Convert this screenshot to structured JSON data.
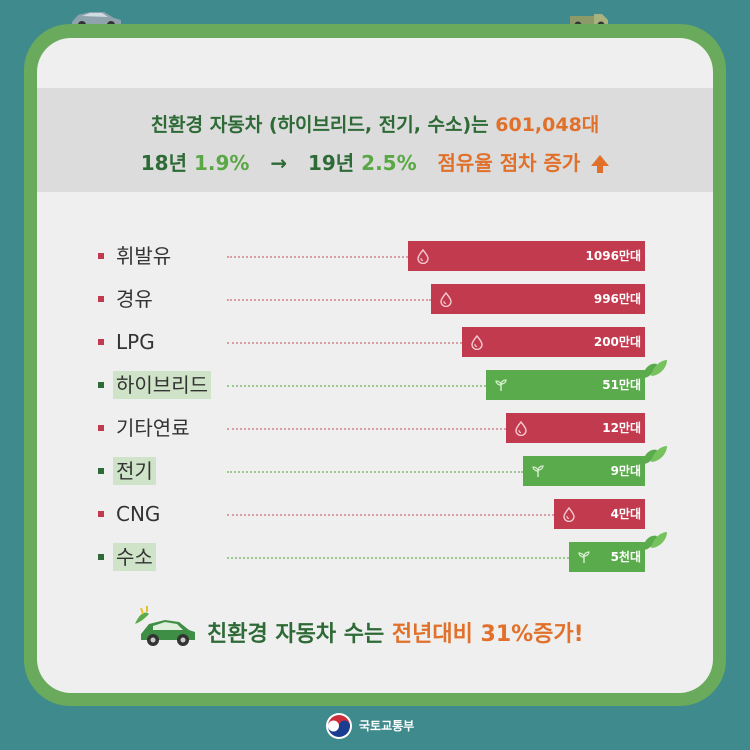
{
  "header": {
    "line1_prefix": "친환경 자동차 (하이브리드, 전기, 수소)는 ",
    "line1_value": "601,048대",
    "line2_y18": "18년 ",
    "line2_y18_pct": "1.9%",
    "line2_arrow": "→",
    "line2_y19": "19년 ",
    "line2_y19_pct": "2.5%",
    "line2_trend": "점유율 점차 증가"
  },
  "rows": [
    {
      "label": "휘발유",
      "value_text": "1096만대",
      "kind": "fuel",
      "highlight": false
    },
    {
      "label": "경유",
      "value_text": "996만대",
      "kind": "fuel",
      "highlight": false
    },
    {
      "label": "LPG",
      "value_text": "200만대",
      "kind": "fuel",
      "highlight": false
    },
    {
      "label": "하이브리드",
      "value_text": "51만대",
      "kind": "eco",
      "highlight": true
    },
    {
      "label": "기타연료",
      "value_text": "12만대",
      "kind": "fuel",
      "highlight": false
    },
    {
      "label": "전기",
      "value_text": "9만대",
      "kind": "eco",
      "highlight": true
    },
    {
      "label": "CNG",
      "value_text": "4만대",
      "kind": "fuel",
      "highlight": false
    },
    {
      "label": "수소",
      "value_text": "5천대",
      "kind": "eco",
      "highlight": true
    }
  ],
  "footer": {
    "prefix": "친환경 자동차 수는 ",
    "highlight": "전년대비 31%증가!"
  },
  "ministry": {
    "name": "국토교통부"
  },
  "colors": {
    "background": "#3f8a8c",
    "frame": "#6aaa5c",
    "fuel_bar": "#c23a4e",
    "eco_bar": "#5aab4b",
    "accent_orange": "#e0702a",
    "title_green": "#2e6a36"
  },
  "icons": {
    "fuel": "fuel-drop-icon",
    "eco": "sprout-icon",
    "eco_leaf": "leaf-icon",
    "trend": "arrow-up-icon",
    "footer": "eco-car-icon"
  }
}
